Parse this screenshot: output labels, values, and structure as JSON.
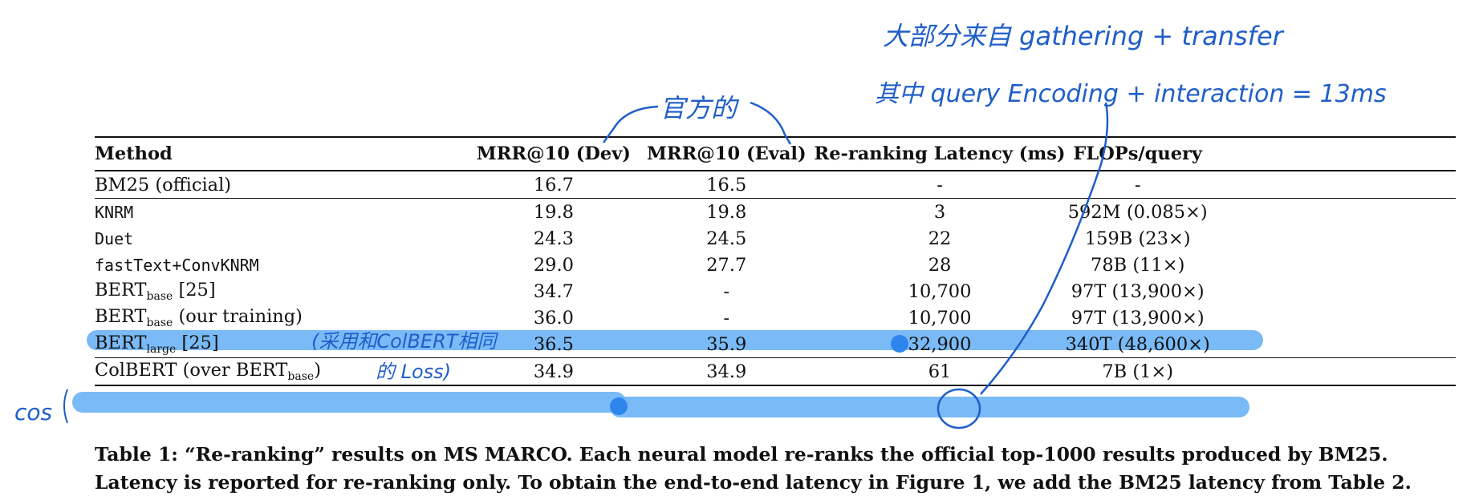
{
  "table": {
    "headers": {
      "method": "Method",
      "dev": "MRR@10 (Dev)",
      "eval": "MRR@10 (Eval)",
      "latency": "Re-ranking Latency (ms)",
      "flops": "FLOPs/query"
    },
    "rows": [
      {
        "method": "BM25 (official)",
        "dev": "16.7",
        "eval": "16.5",
        "latency": "-",
        "flops": "-"
      },
      {
        "method": "KNRM",
        "dev": "19.8",
        "eval": "19.8",
        "latency": "3",
        "flops": "592M (0.085×)"
      },
      {
        "method": "Duet",
        "dev": "24.3",
        "eval": "24.5",
        "latency": "22",
        "flops": "159B (23×)"
      },
      {
        "method": "fastText+ConvKNRM",
        "dev": "29.0",
        "eval": "27.7",
        "latency": "28",
        "flops": "78B (11×)"
      },
      {
        "method_main": "BERT",
        "method_sub": "base",
        "method_rest": " [25]",
        "dev": "34.7",
        "eval": "-",
        "latency": "10,700",
        "flops": "97T (13,900×)"
      },
      {
        "method_main": "BERT",
        "method_sub": "base",
        "method_rest": " (our training)",
        "dev": "36.0",
        "eval": "-",
        "latency": "10,700",
        "flops": "97T (13,900×)"
      },
      {
        "method_main": "BERT",
        "method_sub": "large",
        "method_rest": " [25]",
        "dev": "36.5",
        "eval": "35.9",
        "latency": "32,900",
        "flops": "340T (48,600×)"
      },
      {
        "method_main": "ColBERT (over BERT",
        "method_sub": "base",
        "method_rest": ")",
        "dev": "34.9",
        "eval": "34.9",
        "latency": "61",
        "flops": "7B (1×)"
      }
    ]
  },
  "caption": {
    "line1": "Table 1: “Re-ranking” results on MS MARCO. Each neural model re-ranks the official top-1000 results produced by BM25.",
    "line2": "Latency is reported for re-ranking only. To obtain the end-to-end latency in Figure 1, we add the BM25 latency from Table 2."
  },
  "annotations": {
    "top_line1": "大部分来自 gathering + transfer",
    "top_line2": "其中 query Encoding + interaction = 13ms",
    "official": "官方的",
    "loss_line1": "(采用和ColBERT相同",
    "loss_line2": "的 Loss)",
    "cos": "cos"
  },
  "colors": {
    "ink": "#1f5ec9",
    "highlight": "#6cb2f5",
    "text": "#111111"
  }
}
